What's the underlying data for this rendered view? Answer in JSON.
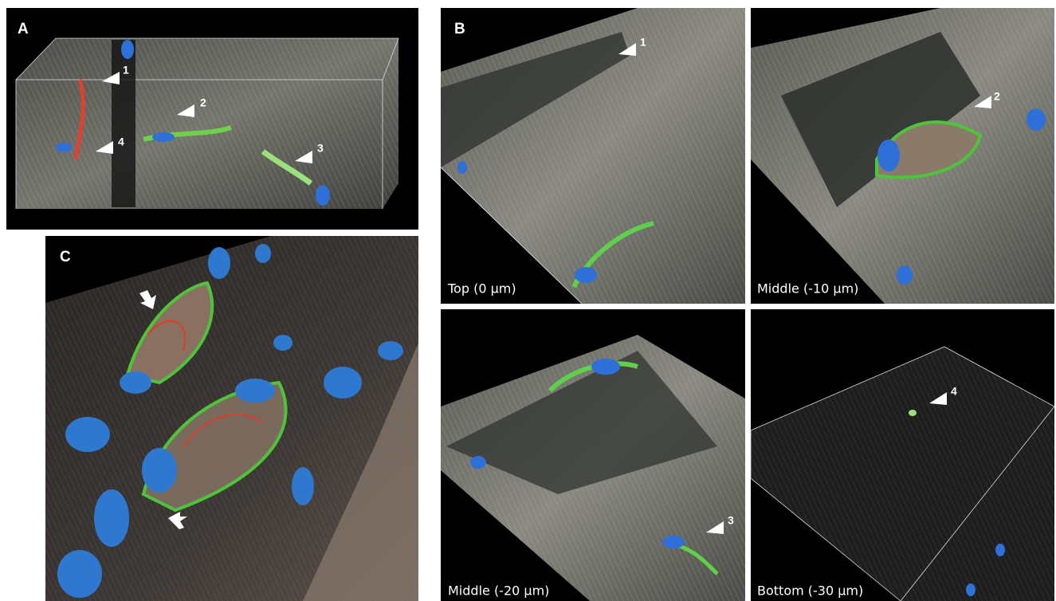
{
  "panels": {
    "A": {
      "label": "A",
      "markers": [
        "1",
        "2",
        "3",
        "4"
      ]
    },
    "B": {
      "label": "B",
      "views": [
        {
          "caption": "Top (0 µm)",
          "markers": [
            "1"
          ]
        },
        {
          "caption": "Middle (-10 µm)",
          "markers": [
            "2"
          ]
        },
        {
          "caption": "Middle (-20 µm)",
          "markers": [
            "3"
          ]
        },
        {
          "caption": "Bottom (-30 µm)",
          "markers": [
            "4"
          ]
        }
      ]
    },
    "C": {
      "label": "C"
    }
  }
}
